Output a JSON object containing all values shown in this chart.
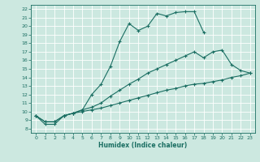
{
  "title": "",
  "xlabel": "Humidex (Indice chaleur)",
  "bg_color": "#cce8e0",
  "grid_color": "#b0d0c8",
  "line_color": "#1a6e62",
  "xlim": [
    -0.5,
    23.5
  ],
  "ylim": [
    7.5,
    22.5
  ],
  "xticks": [
    0,
    1,
    2,
    3,
    4,
    5,
    6,
    7,
    8,
    9,
    10,
    11,
    12,
    13,
    14,
    15,
    16,
    17,
    18,
    19,
    20,
    21,
    22,
    23
  ],
  "yticks": [
    8,
    9,
    10,
    11,
    12,
    13,
    14,
    15,
    16,
    17,
    18,
    19,
    20,
    21,
    22
  ],
  "line1_x": [
    0,
    1,
    2,
    3,
    4,
    5,
    6,
    7,
    8,
    9,
    10,
    11,
    12,
    13,
    14,
    15,
    16,
    17,
    18
  ],
  "line1_y": [
    9.5,
    8.5,
    8.5,
    9.5,
    9.8,
    10.2,
    12.0,
    13.2,
    15.3,
    18.2,
    20.3,
    19.5,
    20.0,
    21.5,
    21.2,
    21.6,
    21.7,
    21.7,
    19.3
  ],
  "line2_x": [
    0,
    1,
    2,
    3,
    4,
    5,
    6,
    7,
    8,
    9,
    10,
    11,
    12,
    13,
    14,
    15,
    16,
    17,
    18,
    19,
    20,
    21,
    22,
    23
  ],
  "line2_y": [
    9.5,
    8.8,
    8.8,
    9.5,
    9.8,
    10.2,
    10.5,
    11.0,
    11.8,
    12.5,
    13.2,
    13.8,
    14.5,
    15.0,
    15.5,
    16.0,
    16.5,
    17.0,
    16.3,
    17.0,
    17.2,
    15.5,
    14.8,
    14.5
  ],
  "line3_x": [
    0,
    1,
    2,
    3,
    4,
    5,
    6,
    7,
    8,
    9,
    10,
    11,
    12,
    13,
    14,
    15,
    16,
    17,
    18,
    19,
    20,
    21,
    22,
    23
  ],
  "line3_y": [
    9.5,
    8.8,
    8.8,
    9.5,
    9.8,
    10.0,
    10.2,
    10.4,
    10.7,
    11.0,
    11.3,
    11.6,
    11.9,
    12.2,
    12.5,
    12.7,
    13.0,
    13.2,
    13.3,
    13.5,
    13.7,
    14.0,
    14.2,
    14.5
  ]
}
